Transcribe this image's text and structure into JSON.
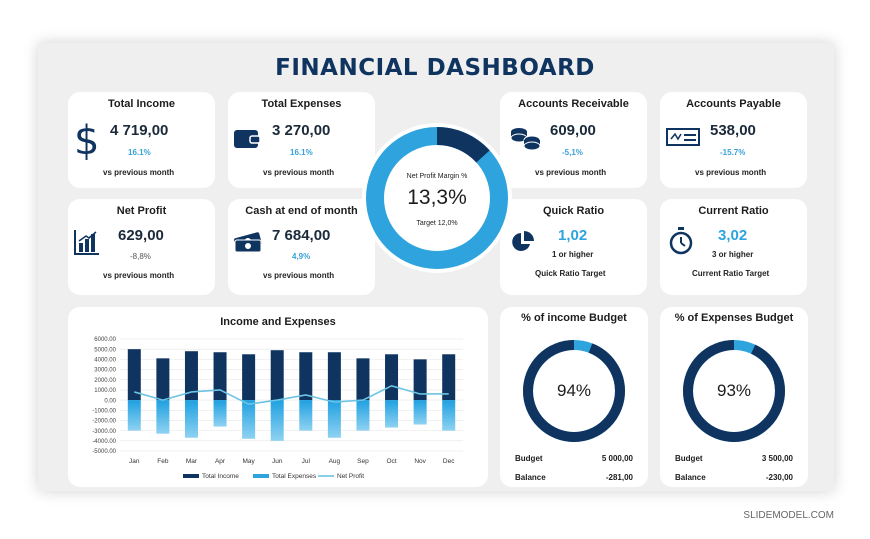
{
  "header": {
    "title": "FINANCIAL DASHBOARD"
  },
  "cards": {
    "total_income": {
      "title": "Total Income",
      "value": "4 719,00",
      "change": "16.1%",
      "caption": "vs previous month",
      "icon": "dollar-icon"
    },
    "total_expenses": {
      "title": "Total Expenses",
      "value": "3 270,00",
      "change": "16.1%",
      "caption": "vs previous month",
      "icon": "wallet-icon"
    },
    "net_profit": {
      "title": "Net Profit",
      "value": "629,00",
      "change": "-8,8%",
      "caption": "vs previous month",
      "icon": "bar-chart-icon"
    },
    "cash_end": {
      "title": "Cash at end of month",
      "value": "7 684,00",
      "change": "4,9%",
      "caption": "vs previous month",
      "icon": "cash-icon"
    },
    "accounts_receivable": {
      "title": "Accounts Receivable",
      "value": "609,00",
      "change": "-5,1%",
      "caption": "vs previous month",
      "icon": "coins-icon"
    },
    "accounts_payable": {
      "title": "Accounts Payable",
      "value": "538,00",
      "change": "-15.7%",
      "caption": "vs previous month",
      "icon": "check-icon"
    },
    "quick_ratio": {
      "title": "Quick Ratio",
      "value": "1,02",
      "target_text": "1 or higher",
      "caption": "Quick Ratio Target",
      "icon": "pie-icon"
    },
    "current_ratio": {
      "title": "Current Ratio",
      "value": "3,02",
      "target_text": "3 or higher",
      "caption": "Current Ratio Target",
      "icon": "stopwatch-icon"
    }
  },
  "margin_gauge": {
    "label": "Net  Profit Margin %",
    "value_text": "13,3%",
    "target_text": "Target 12,0%",
    "fraction": 0.133,
    "colors": {
      "filled": "#0f3460",
      "rest": "#2ea3dd"
    }
  },
  "income_budget": {
    "title": "% of income Budget",
    "percent_text": "94%",
    "fraction": 0.94,
    "budget_label": "Budget",
    "budget_value": "5 000,00",
    "balance_label": "Balance",
    "balance_value": "-281,00"
  },
  "expenses_budget": {
    "title": "% of Expenses Budget",
    "percent_text": "93%",
    "fraction": 0.93,
    "budget_label": "Budget",
    "budget_value": "3 500,00",
    "balance_label": "Balance",
    "balance_value": "-230,00"
  },
  "colors": {
    "navy": "#0f3460",
    "blue": "#2ea3dd",
    "light_blue": "#9fd4ee",
    "line": "#6cc3e3"
  },
  "chart_data": {
    "type": "bar",
    "title": "Income and  Expenses",
    "categories": [
      "Jan",
      "Feb",
      "Mar",
      "Apr",
      "May",
      "Jun",
      "Jul",
      "Aug",
      "Sep",
      "Oct",
      "Nov",
      "Dec"
    ],
    "series": [
      {
        "name": "Total Income",
        "values": [
          5000,
          4100,
          4800,
          4700,
          4500,
          4900,
          4700,
          4700,
          4100,
          4500,
          4000,
          4500
        ]
      },
      {
        "name": "Total Expenses",
        "values": [
          -3000,
          -3300,
          -3700,
          -2600,
          -3800,
          -4000,
          -3000,
          -3700,
          -3000,
          -2700,
          -2400,
          -3000
        ]
      },
      {
        "name": "Net Profit",
        "values": [
          800,
          0,
          800,
          1000,
          -400,
          0,
          500,
          -200,
          0,
          1400,
          600,
          600
        ],
        "type": "line"
      }
    ],
    "yticks": [
      "6000.00",
      "5000.00",
      "4000.00",
      "3000.00",
      "2000.00",
      "1000.00",
      "0.00",
      "-1000.00",
      "-2000.00",
      "-3000.00",
      "-4000.00",
      "-5000.00"
    ],
    "ylim": [
      -5000,
      6000
    ],
    "legend": "bottom"
  },
  "footer": {
    "watermark": "SLIDEMODEL.COM"
  }
}
